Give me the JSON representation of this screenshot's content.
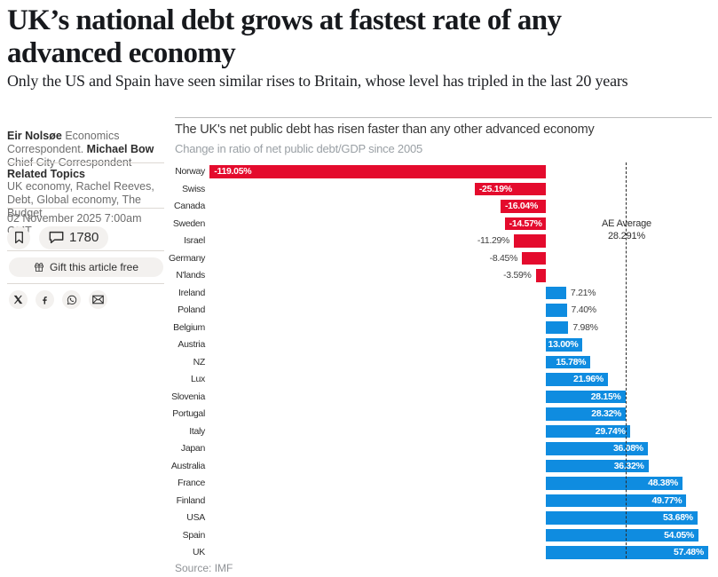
{
  "header": {
    "headline_line1": "UK’s national debt grows at fastest rate of any",
    "headline_line2": "advanced economy",
    "subheadline": "Only the US and Spain have seen similar rises to Britain, whose level has tripled in the last 20 years"
  },
  "sidebar": {
    "byline": {
      "author1": "Eir Nolsøe",
      "role1": "Economics Correspondent.",
      "author2": "Michael Bow",
      "role2": "Chief City Correspondent"
    },
    "related": {
      "heading": "Related Topics",
      "topics": "UK economy, Rachel Reeves, Debt, Global economy, The Budget"
    },
    "date": "02 November 2025 7:00am GMT",
    "comments_count": "1780",
    "gift_label": "Gift this article free"
  },
  "chart_data": {
    "type": "bar",
    "orientation": "horizontal",
    "title": "The UK's net public debt has risen faster than any other advanced economy",
    "subtitle": "Change in ratio of net public debt/GDP since 2005",
    "source": "Source: IMF",
    "xlabel": "",
    "ylabel": "",
    "xlim": [
      -125,
      60
    ],
    "grid": false,
    "negative_color": "#e40b2d",
    "positive_color": "#0f8ce0",
    "categories": [
      "Norway",
      "Swiss",
      "Canada",
      "Sweden",
      "Israel",
      "Germany",
      "N'lands",
      "Ireland",
      "Poland",
      "Belgium",
      "Austria",
      "NZ",
      "Lux",
      "Slovenia",
      "Portugal",
      "Italy",
      "Japan",
      "Australia",
      "France",
      "Finland",
      "USA",
      "Spain",
      "UK"
    ],
    "values": [
      -119.05,
      -25.19,
      -16.04,
      -14.57,
      -11.29,
      -8.45,
      -3.59,
      7.21,
      7.4,
      7.98,
      13.0,
      15.78,
      21.96,
      28.15,
      28.32,
      29.74,
      36.08,
      36.32,
      48.38,
      49.77,
      53.68,
      54.05,
      57.48
    ],
    "value_labels": [
      "-119.05%",
      "-25.19%",
      "-16.04%",
      "-14.57%",
      "-11.29%",
      "-8.45%",
      "-3.59%",
      "7.21%",
      "7.40%",
      "7.98%",
      "13.00%",
      "15.78%",
      "21.96%",
      "28.15%",
      "28.32%",
      "29.74%",
      "36.08%",
      "36.32%",
      "48.38%",
      "49.77%",
      "53.68%",
      "54.05%",
      "57.48%"
    ],
    "label_inside": [
      true,
      true,
      true,
      true,
      false,
      false,
      false,
      false,
      false,
      false,
      true,
      true,
      true,
      true,
      true,
      true,
      true,
      true,
      true,
      true,
      true,
      true,
      true
    ],
    "reference_line": {
      "value": 28.291,
      "label_line1": "AE Average",
      "label_line2": "28.291%"
    }
  }
}
